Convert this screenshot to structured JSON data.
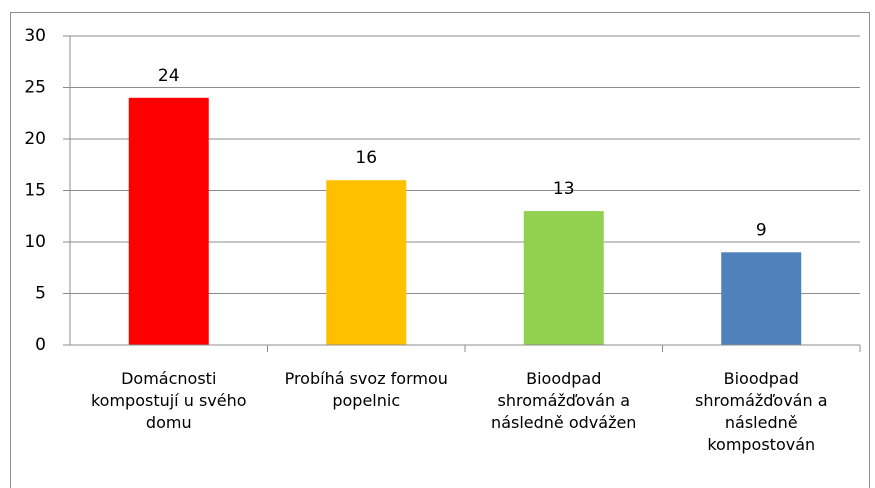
{
  "chart_data": {
    "type": "bar",
    "categories": [
      "Domácnosti kompostují u svého domu",
      "Probíhá svoz formou popelnic",
      "Bioodpad shromážďován a následně odvážen",
      "Bioodpad shromážďován a následně kompostován"
    ],
    "values": [
      24,
      16,
      13,
      9
    ],
    "colors": [
      "#ff0000",
      "#ffc000",
      "#92d050",
      "#4f81bd"
    ],
    "ylim": [
      0,
      30
    ],
    "yticks": [
      0,
      5,
      10,
      15,
      20,
      25,
      30
    ],
    "grid": true
  }
}
